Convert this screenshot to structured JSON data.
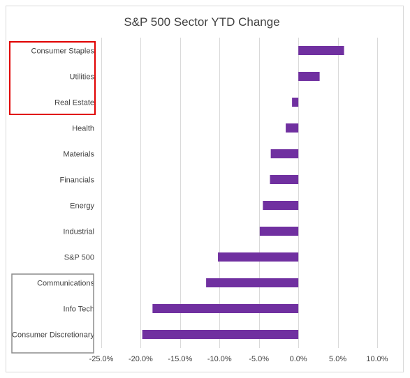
{
  "chart_data": {
    "type": "bar",
    "orientation": "horizontal",
    "title": "S&P 500 Sector YTD Change",
    "categories": [
      "Consumer Staples",
      "Utilities",
      "Real Estate",
      "Health",
      "Materials",
      "Financials",
      "Energy",
      "Industrial",
      "S&P 500",
      "Communications",
      "Info Tech",
      "Consumer Discretionary"
    ],
    "values": [
      5.8,
      2.7,
      -0.8,
      -1.6,
      -3.5,
      -3.6,
      -4.5,
      -4.9,
      -10.2,
      -11.7,
      -18.5,
      -19.8
    ],
    "xlim": [
      -25,
      10
    ],
    "xticks": [
      -25,
      -20,
      -15,
      -10,
      -5,
      0,
      5,
      10
    ],
    "xtick_labels": [
      "-25.0%",
      "-20.0%",
      "-15.0%",
      "-10.0%",
      "-5.0%",
      "0.0%",
      "5.0%",
      "10.0%"
    ],
    "xlabel": "",
    "ylabel": "",
    "grid": "vertical",
    "legend": "none",
    "colors": {
      "bar": "#7030a0",
      "highlight_box_top": "#e00000",
      "highlight_box_bottom": "#8c8c8c",
      "grid": "#d9d9d9",
      "text": "#404040"
    },
    "annotations": [
      {
        "type": "box",
        "color": "#e00000",
        "covers": [
          "Consumer Staples",
          "Utilities",
          "Real Estate"
        ]
      },
      {
        "type": "box",
        "color": "#8c8c8c",
        "covers": [
          "Communications",
          "Info Tech",
          "Consumer Discretionary"
        ]
      }
    ]
  }
}
